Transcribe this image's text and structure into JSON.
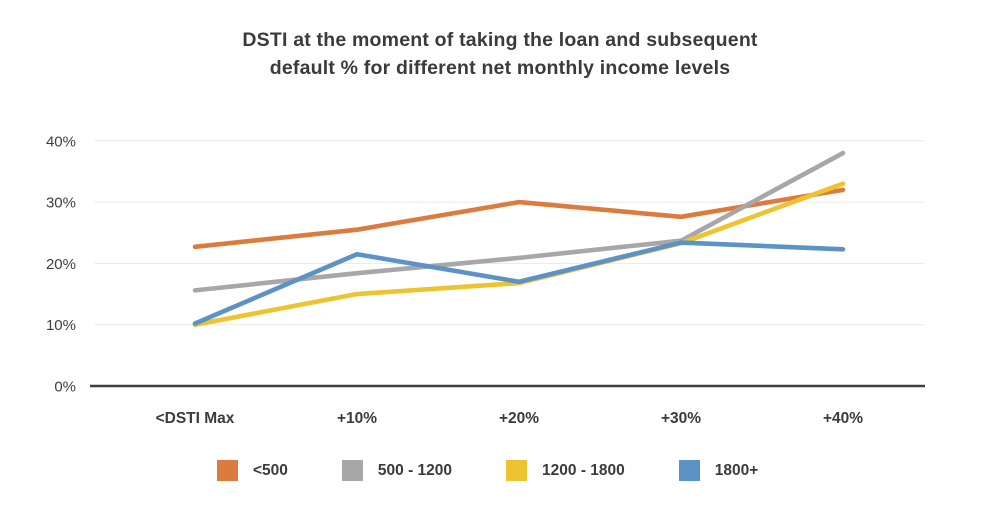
{
  "title": {
    "line1": "DSTI at the moment of taking the loan and subsequent",
    "line2": "default % for different net monthly income levels"
  },
  "chart_data": {
    "type": "line",
    "categories": [
      "<DSTI Max",
      "+10%",
      "+20%",
      "+30%",
      "+40%"
    ],
    "series": [
      {
        "name": "<500",
        "color": "#db7c3e",
        "values": [
          22.7,
          25.5,
          30.0,
          27.6,
          32.0
        ]
      },
      {
        "name": "500 - 1200",
        "color": "#a7a7a7",
        "values": [
          15.6,
          18.4,
          20.9,
          23.7,
          38.0
        ]
      },
      {
        "name": "1200 - 1800",
        "color": "#edc32f",
        "values": [
          10.0,
          15.0,
          16.8,
          23.3,
          33.0
        ]
      },
      {
        "name": "1800+",
        "color": "#5b93c7",
        "values": [
          10.2,
          21.5,
          17.0,
          23.4,
          22.3
        ]
      }
    ],
    "y_ticks": [
      "0%",
      "10%",
      "20%",
      "30%",
      "40%"
    ],
    "y_tick_values": [
      0,
      10,
      20,
      30,
      40
    ],
    "ylim": [
      0,
      44
    ],
    "xlabel": "",
    "ylabel": "",
    "grid": true,
    "legend_position": "bottom",
    "axis_color": "#3f3f3f",
    "grid_color": "#eaeaea",
    "text_color": "#3b3b3b"
  }
}
